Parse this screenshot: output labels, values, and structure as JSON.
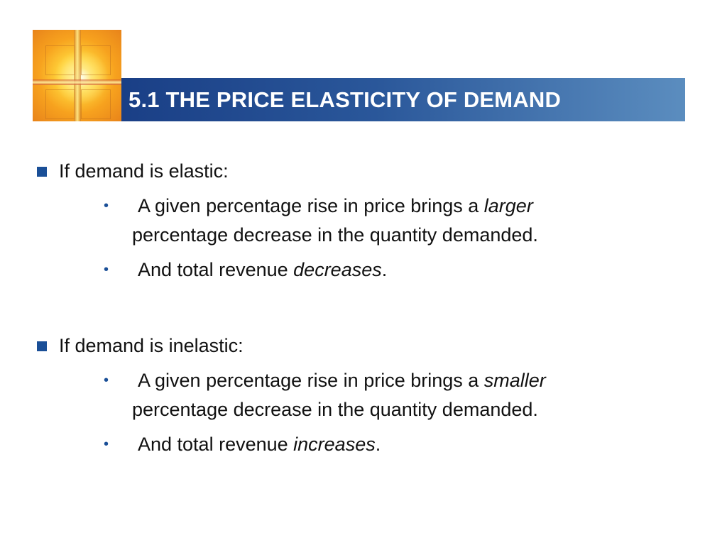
{
  "slide": {
    "title": "5.1 THE PRICE ELASTICITY OF DEMAND",
    "colors": {
      "title_bar_start": "#1a3f86",
      "title_bar_end": "#5b8dbf",
      "bullet": "#1a4f97",
      "title_text": "#ffffff"
    }
  },
  "sections": [
    {
      "heading": "If demand is elastic:",
      "points": [
        {
          "line1_before": "A given percentage rise in price brings a ",
          "line1_em": "larger",
          "line2": "percentage decrease in the quantity demanded."
        },
        {
          "before": "And total revenue ",
          "em": "decreases",
          "after": "."
        }
      ]
    },
    {
      "heading": "If demand is inelastic:",
      "points": [
        {
          "line1_before": "A given percentage rise in price brings a ",
          "line1_em": "smaller",
          "line2": "percentage decrease in the quantity demanded."
        },
        {
          "before": "And total revenue ",
          "em": "increases",
          "after": "."
        }
      ]
    }
  ],
  "icons": {
    "logo": "cross-light-logo",
    "section_bullet": "square-bullet-icon",
    "point_bullet": "dot-bullet-icon"
  }
}
